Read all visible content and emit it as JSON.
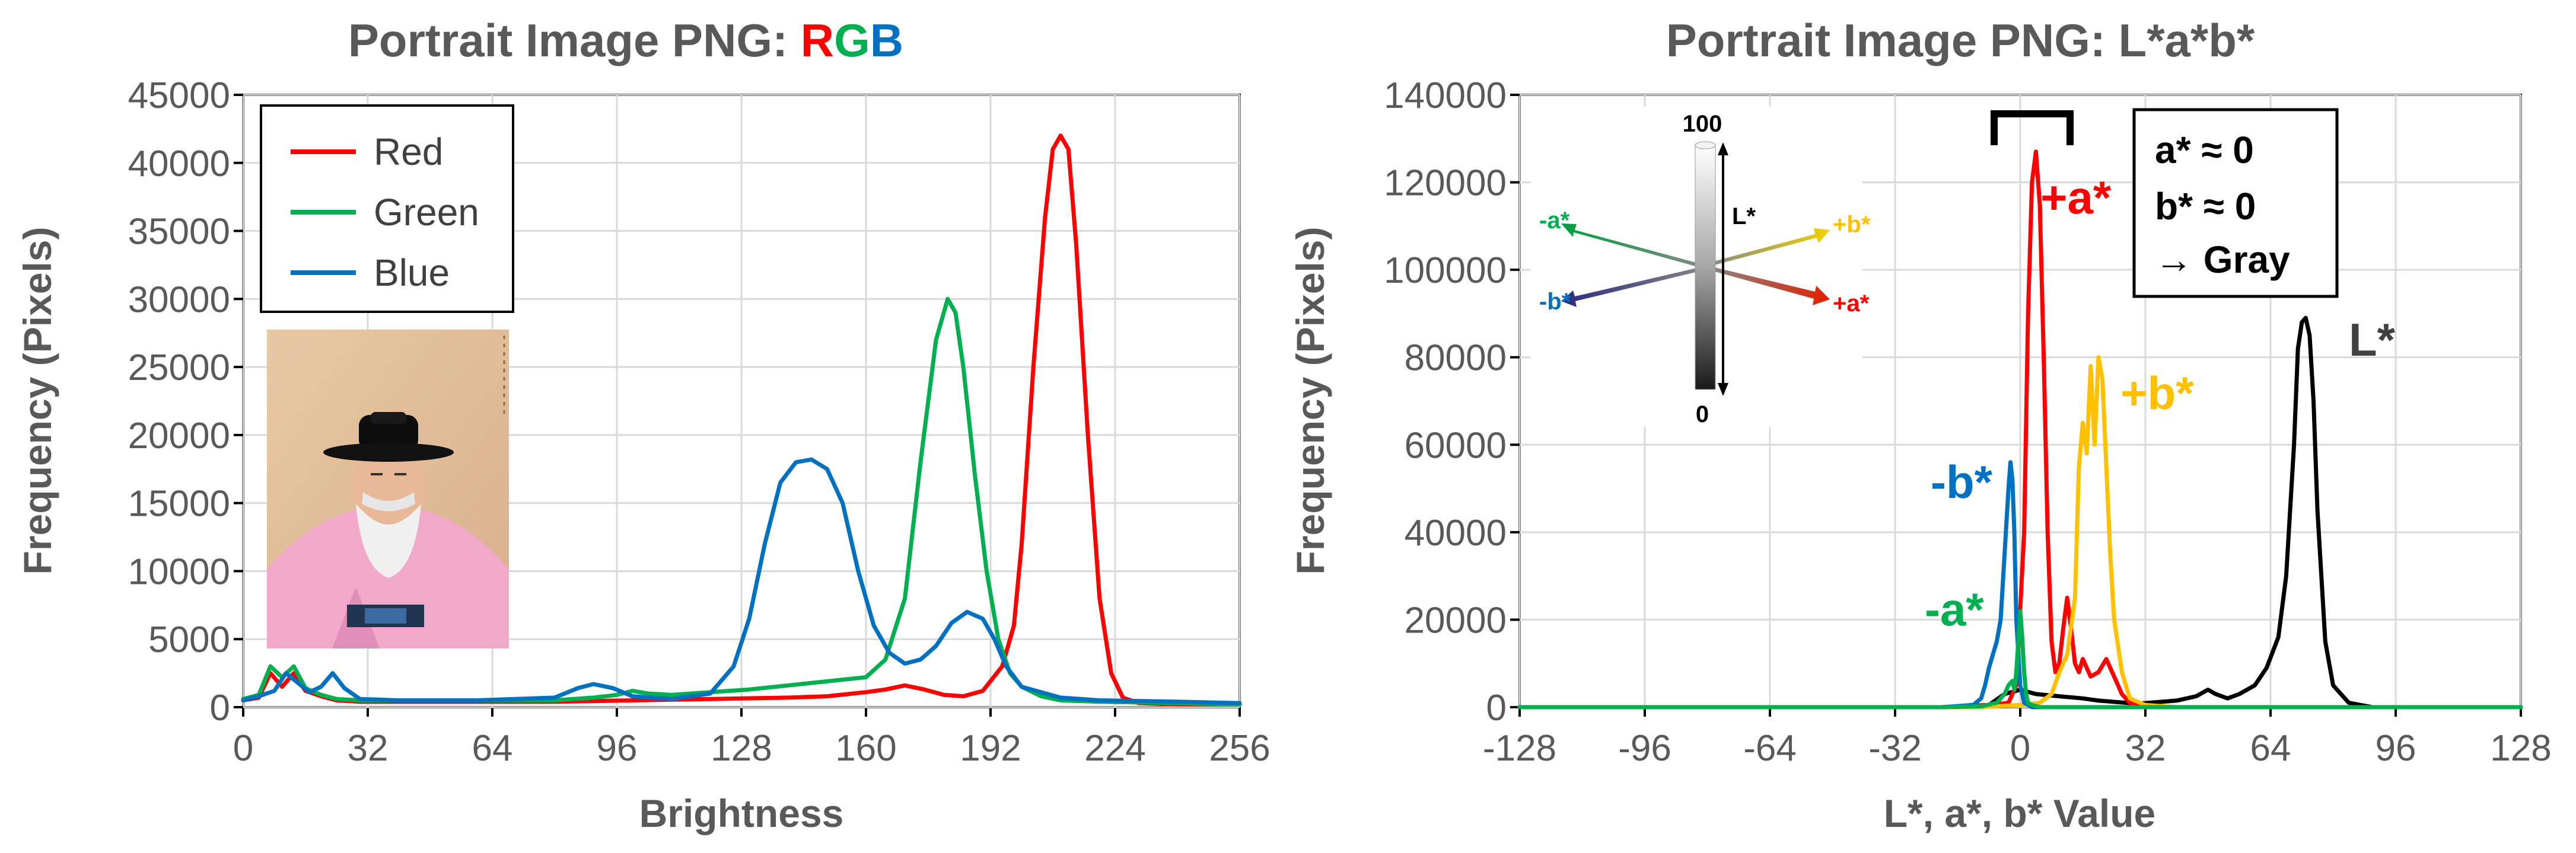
{
  "chart_data": [
    {
      "type": "line",
      "title": "Portrait Image PNG: ",
      "title_highlight": [
        {
          "text": "R",
          "color": "#ff0000"
        },
        {
          "text": "G",
          "color": "#00b050"
        },
        {
          "text": "B",
          "color": "#0070c0"
        }
      ],
      "xlabel": "Brightness",
      "ylabel": "Frequency (Pixels)",
      "xlim": [
        0,
        256
      ],
      "ylim": [
        0,
        45000
      ],
      "xticks": [
        "0",
        "32",
        "64",
        "96",
        "128",
        "160",
        "192",
        "224",
        "256"
      ],
      "yticks": [
        "0",
        "5000",
        "10000",
        "15000",
        "20000",
        "25000",
        "30000",
        "35000",
        "40000",
        "45000"
      ],
      "grid": true,
      "legend": "top-left",
      "inset_image": "portrait-painting",
      "series": [
        {
          "name": "Red",
          "color": "#ff0000",
          "x": [
            0,
            4,
            7,
            10,
            13,
            16,
            20,
            24,
            30,
            40,
            60,
            80,
            100,
            120,
            140,
            150,
            160,
            165,
            170,
            175,
            180,
            185,
            190,
            195,
            198,
            200,
            203,
            206,
            208,
            210,
            212,
            214,
            217,
            220,
            223,
            226,
            230,
            240,
            256
          ],
          "y": [
            500,
            700,
            2500,
            1500,
            2500,
            1200,
            800,
            500,
            400,
            400,
            400,
            400,
            500,
            600,
            700,
            800,
            1100,
            1300,
            1600,
            1300,
            900,
            800,
            1200,
            3000,
            6000,
            12000,
            25000,
            36000,
            41000,
            42000,
            41000,
            34000,
            20000,
            8000,
            2500,
            700,
            300,
            200,
            200
          ]
        },
        {
          "name": "Green",
          "color": "#00b050",
          "x": [
            0,
            4,
            7,
            10,
            13,
            16,
            20,
            24,
            30,
            40,
            60,
            80,
            90,
            96,
            100,
            104,
            110,
            120,
            130,
            140,
            150,
            160,
            165,
            170,
            174,
            178,
            181,
            183,
            185,
            188,
            191,
            194,
            197,
            200,
            205,
            210,
            220,
            240,
            256
          ],
          "y": [
            600,
            900,
            3000,
            2200,
            3000,
            1400,
            900,
            600,
            500,
            500,
            500,
            500,
            700,
            900,
            1200,
            1000,
            900,
            1100,
            1300,
            1600,
            1900,
            2200,
            3500,
            8000,
            18000,
            27000,
            30000,
            29000,
            25000,
            17000,
            10000,
            5000,
            2500,
            1500,
            800,
            500,
            400,
            300,
            200
          ]
        },
        {
          "name": "Blue",
          "color": "#0070c0",
          "x": [
            0,
            4,
            8,
            11,
            14,
            17,
            20,
            23,
            26,
            30,
            40,
            60,
            80,
            86,
            90,
            95,
            100,
            110,
            120,
            126,
            130,
            134,
            138,
            142,
            146,
            150,
            154,
            158,
            162,
            166,
            170,
            174,
            178,
            182,
            186,
            190,
            193,
            196,
            200,
            210,
            220,
            240,
            256
          ],
          "y": [
            500,
            800,
            1200,
            2500,
            1800,
            1100,
            1500,
            2500,
            1400,
            600,
            500,
            500,
            700,
            1400,
            1700,
            1400,
            800,
            600,
            1000,
            3000,
            6500,
            12000,
            16500,
            18000,
            18200,
            17500,
            15000,
            10000,
            6000,
            4000,
            3200,
            3500,
            4500,
            6200,
            7000,
            6500,
            5000,
            3000,
            1500,
            700,
            500,
            400,
            300
          ]
        }
      ]
    },
    {
      "type": "line",
      "title": "Portrait Image PNG: L*a*b*",
      "xlabel": "L*, a*, b* Value",
      "ylabel": "Frequency (Pixels)",
      "xlim": [
        -128,
        128
      ],
      "ylim": [
        0,
        140000
      ],
      "xticks": [
        "-128",
        "-96",
        "-64",
        "-32",
        "0",
        "32",
        "64",
        "96",
        "128"
      ],
      "yticks": [
        "0",
        "20000",
        "40000",
        "60000",
        "80000",
        "100000",
        "120000",
        "140000"
      ],
      "grid": true,
      "series": [
        {
          "label": "L*",
          "color": "#000000",
          "x": [
            -128,
            -20,
            -8,
            -4,
            0,
            4,
            10,
            16,
            20,
            30,
            40,
            45,
            48,
            50,
            53,
            56,
            60,
            63,
            66,
            68,
            70,
            71,
            72,
            73,
            74,
            75,
            76,
            78,
            80,
            84,
            90,
            128
          ],
          "y": [
            0,
            0,
            500,
            3000,
            4000,
            3000,
            2500,
            2000,
            1500,
            800,
            1500,
            2500,
            4000,
            3000,
            2000,
            3000,
            5000,
            9000,
            16000,
            30000,
            60000,
            82000,
            88000,
            89000,
            85000,
            70000,
            45000,
            15000,
            5000,
            1000,
            0,
            0
          ]
        },
        {
          "label": "+a*",
          "color": "#ff0000",
          "x": [
            -128,
            -20,
            -8,
            -3,
            -1,
            1,
            2,
            3,
            4,
            5,
            6,
            7,
            8,
            9,
            10,
            11,
            12,
            13,
            14,
            15,
            16,
            17,
            18,
            20,
            22,
            24,
            26,
            28,
            32,
            40,
            128
          ],
          "y": [
            0,
            0,
            500,
            1000,
            5000,
            40000,
            90000,
            120000,
            127000,
            115000,
            80000,
            40000,
            15000,
            8000,
            10000,
            18000,
            25000,
            18000,
            10000,
            8000,
            11000,
            9000,
            7000,
            8000,
            11000,
            7000,
            3000,
            1000,
            200,
            0,
            0
          ]
        },
        {
          "label": "+b*",
          "color": "#ffc000",
          "x": [
            -128,
            -10,
            0,
            5,
            8,
            10,
            12,
            14,
            15,
            16,
            17,
            18,
            19,
            20,
            21,
            22,
            23,
            24,
            26,
            28,
            32,
            40,
            128
          ],
          "y": [
            0,
            0,
            500,
            1000,
            3000,
            8000,
            12000,
            25000,
            55000,
            65000,
            58000,
            78000,
            60000,
            80000,
            75000,
            55000,
            35000,
            20000,
            8000,
            2000,
            500,
            0,
            0
          ]
        },
        {
          "label": "-b*",
          "color": "#0070c0",
          "x": [
            -128,
            -20,
            -12,
            -10,
            -9,
            -8,
            -7,
            -6,
            -5,
            -4,
            -3,
            -2.5,
            -2,
            -1.5,
            -1,
            0,
            1,
            3,
            128
          ],
          "y": [
            0,
            0,
            500,
            2000,
            5000,
            9000,
            12000,
            15000,
            20000,
            35000,
            50000,
            56000,
            52000,
            40000,
            20000,
            5000,
            1000,
            0,
            0
          ]
        },
        {
          "label": "-a*",
          "color": "#00b050",
          "x": [
            -128,
            -20,
            -10,
            -6,
            -4,
            -3,
            -2,
            -1.5,
            -1,
            -0.5,
            0,
            0.5,
            1,
            1.5,
            2,
            3,
            5,
            128
          ],
          "y": [
            0,
            0,
            200,
            1000,
            3000,
            5000,
            6000,
            4000,
            8000,
            15000,
            22000,
            16000,
            8000,
            3000,
            1000,
            500,
            0,
            0
          ]
        }
      ],
      "annotations": [
        {
          "text": "+a*",
          "color": "#ff0000"
        },
        {
          "text": "+b*",
          "color": "#ffc000"
        },
        {
          "text": "-b*",
          "color": "#0070c0"
        },
        {
          "text": "-a*",
          "color": "#00b050"
        },
        {
          "text": "L*",
          "color": "#404040"
        }
      ],
      "note_box": [
        "a* ≈ 0",
        "b* ≈ 0",
        "→ Gray"
      ],
      "bracket": "near-zero range",
      "color_space_diagram": {
        "top": "100",
        "bottom": "0",
        "axis": "L*",
        "labels": [
          {
            "text": "-a*",
            "color": "#00b050"
          },
          {
            "text": "+b*",
            "color": "#ffc000"
          },
          {
            "text": "-b*",
            "color": "#0070c0"
          },
          {
            "text": "+a*",
            "color": "#ff0000"
          }
        ]
      }
    }
  ]
}
